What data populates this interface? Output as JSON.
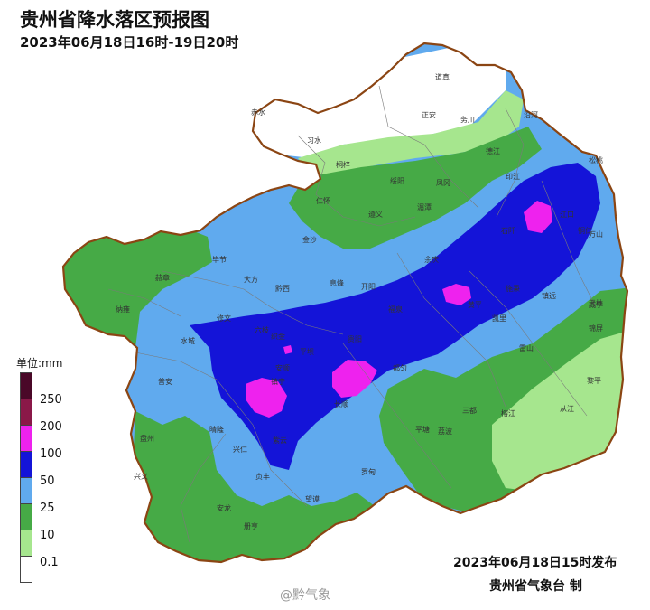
{
  "title": "贵州省降水落区预报图",
  "subtitle": "2023年06月18日16时-19日20时",
  "legend": {
    "title": "单位:mm",
    "levels": [
      {
        "label": "250",
        "color": "#4a0828"
      },
      {
        "label": "200",
        "color": "#8a1848"
      },
      {
        "label": "100",
        "color": "#ee22ee"
      },
      {
        "label": "50",
        "color": "#1414d8"
      },
      {
        "label": "25",
        "color": "#60aaee"
      },
      {
        "label": "10",
        "color": "#46aa46"
      },
      {
        "label": "0.1",
        "color": "#a6e68e"
      },
      {
        "label": "",
        "color": "#ffffff"
      }
    ]
  },
  "issue_time": "2023年06月18日15时发布",
  "agency": "贵州省气象台 制",
  "watermark": "@黔气象",
  "cities": [
    "道真",
    "赤水",
    "正安",
    "务川",
    "沿河",
    "习水",
    "德江",
    "桐梓",
    "印江",
    "松桃",
    "绥阳",
    "凤冈",
    "仁怀",
    "湄潭",
    "石阡",
    "江口",
    "遵义",
    "铜仁",
    "金沙",
    "万山",
    "毕节",
    "大方",
    "余庆",
    "赫章",
    "黔西",
    "息烽",
    "开阳",
    "施秉",
    "镇远",
    "威宁",
    "纳雍",
    "修文",
    "福泉",
    "黄平",
    "天柱",
    "水城",
    "六枝",
    "贵阳",
    "凯里",
    "锦屏",
    "织金",
    "平坝",
    "安顺",
    "都匀",
    "雷山",
    "黎平",
    "普安",
    "镇宁",
    "长顺",
    "三都",
    "从江",
    "盘州",
    "晴隆",
    "紫云",
    "平塘",
    "荔波",
    "榕江",
    "兴仁",
    "贞丰",
    "罗甸",
    "兴义",
    "安龙",
    "册亨",
    "望谟"
  ]
}
